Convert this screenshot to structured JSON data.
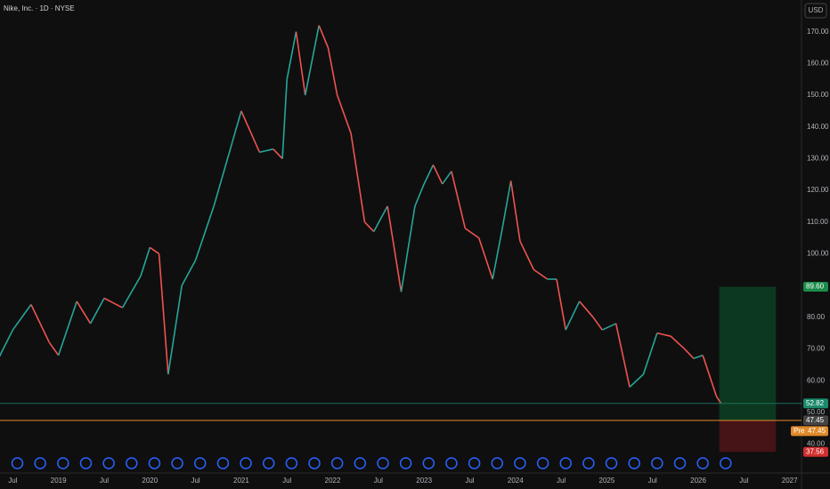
{
  "chart_data": {
    "type": "line",
    "title": "Nike, Inc. · 1D · NYSE",
    "currency": "USD",
    "color_up": "#26a69a",
    "color_down": "#ef5350",
    "x": [
      2018.36,
      2018.5,
      2018.7,
      2018.9,
      2019.0,
      2019.2,
      2019.35,
      2019.5,
      2019.7,
      2019.9,
      2020.0,
      2020.1,
      2020.2,
      2020.35,
      2020.5,
      2020.7,
      2020.9,
      2021.0,
      2021.2,
      2021.35,
      2021.45,
      2021.5,
      2021.6,
      2021.7,
      2021.85,
      2021.95,
      2022.05,
      2022.2,
      2022.35,
      2022.45,
      2022.6,
      2022.75,
      2022.9,
      2023.0,
      2023.1,
      2023.2,
      2023.3,
      2023.45,
      2023.6,
      2023.75,
      2023.85,
      2023.95,
      2024.05,
      2024.2,
      2024.35,
      2024.45,
      2024.55,
      2024.7,
      2024.85,
      2024.95,
      2025.1,
      2025.25,
      2025.4,
      2025.55,
      2025.7,
      2025.85,
      2025.95,
      2026.05,
      2026.2,
      2026.25
    ],
    "values": [
      68,
      76,
      84,
      72,
      68,
      85,
      78,
      86,
      83,
      93,
      102,
      100,
      62,
      90,
      98,
      115,
      135,
      145,
      132,
      133,
      130,
      155,
      170,
      150,
      172,
      165,
      150,
      138,
      110,
      107,
      115,
      88,
      115,
      122,
      128,
      122,
      126,
      108,
      105,
      92,
      107,
      123,
      104,
      95,
      92,
      92,
      76,
      85,
      80,
      76,
      78,
      58,
      62,
      75,
      74,
      70,
      67,
      68,
      55,
      52.8
    ],
    "xlim": [
      2018.36,
      2027.13
    ],
    "ylim": [
      36.5,
      180
    ],
    "xticks": [
      {
        "value": 2018.5,
        "label": "Jul"
      },
      2019,
      {
        "value": 2019.5,
        "label": "Jul"
      },
      2020,
      {
        "value": 2020.5,
        "label": "Jul"
      },
      2021,
      {
        "value": 2021.5,
        "label": "Jul"
      },
      2022,
      {
        "value": 2022.5,
        "label": "Jul"
      },
      2023,
      {
        "value": 2023.5,
        "label": "Jul"
      },
      2024,
      {
        "value": 2024.5,
        "label": "Jul"
      },
      2025,
      {
        "value": 2025.5,
        "label": "Jul"
      },
      2026,
      {
        "value": 2026.5,
        "label": "Jul"
      },
      2027
    ],
    "yticks": [
      {
        "value": 40,
        "label": "40.00"
      },
      {
        "value": 50,
        "label": "50.00"
      },
      {
        "value": 60,
        "label": "60.00"
      },
      {
        "value": 70,
        "label": "70.00"
      },
      {
        "value": 80,
        "label": "80.00"
      },
      {
        "value": 90,
        "label": "90.00"
      },
      {
        "value": 100,
        "label": "100.00"
      },
      {
        "value": 110,
        "label": "110.00"
      },
      {
        "value": 120,
        "label": "120.00"
      },
      {
        "value": 130,
        "label": "130.00"
      },
      {
        "value": 140,
        "label": "140.00"
      },
      {
        "value": 150,
        "label": "150.00"
      },
      {
        "value": 160,
        "label": "160.00"
      },
      {
        "value": 170,
        "label": "170.00"
      }
    ],
    "last_price": {
      "value": 52.82,
      "label": "52.82"
    },
    "premarket": {
      "prefix": "Pre",
      "value": 47.45,
      "label": "47.45"
    },
    "position": {
      "start_x": 2026.23,
      "end_x": 2026.85,
      "target": {
        "value": 89.6,
        "label": "89.60"
      },
      "entry": {
        "value": 47.45,
        "label": "47.45"
      },
      "stop": {
        "value": 37.56,
        "label": "37.56"
      }
    }
  }
}
